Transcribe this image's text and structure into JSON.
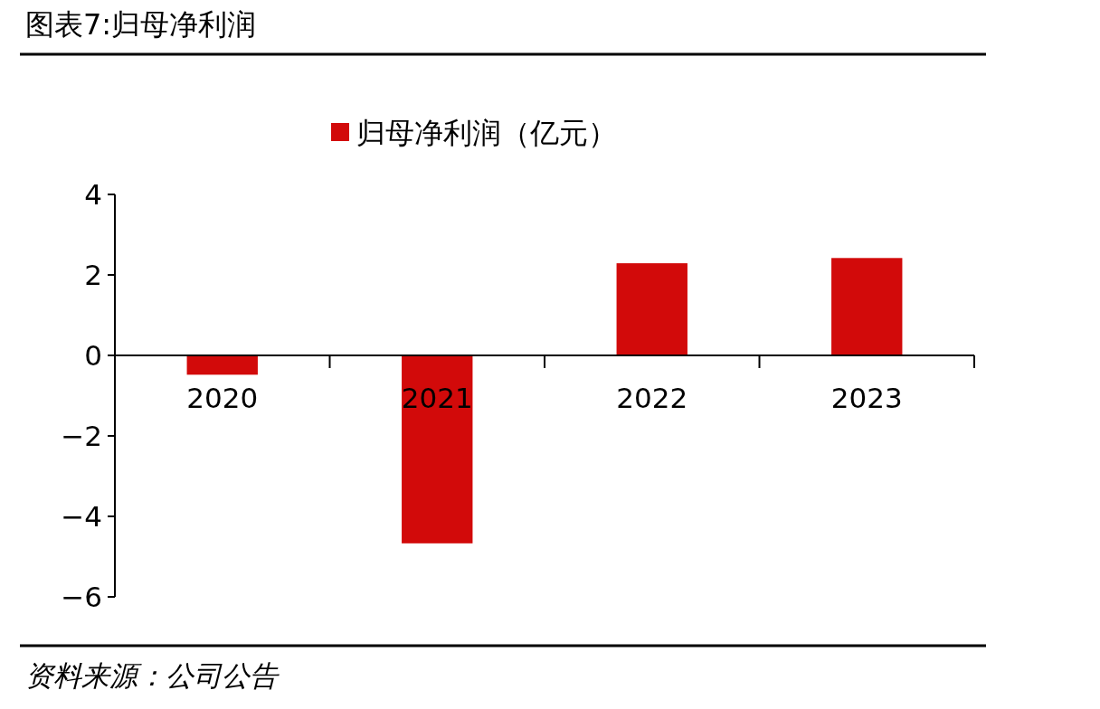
{
  "chart_data": {
    "type": "bar",
    "title": "图表7:归母净利润",
    "categories": [
      "2020",
      "2021",
      "2022",
      "2023"
    ],
    "series": [
      {
        "name": "归母净利润（亿元）",
        "color": "#d20a0a",
        "values": [
          -0.48,
          -4.67,
          2.29,
          2.42
        ]
      }
    ],
    "ylim": [
      -6,
      4
    ],
    "yticks": [
      {
        "value": -6,
        "label": "−6"
      },
      {
        "value": -4,
        "label": "−4"
      },
      {
        "value": -2,
        "label": "−2"
      },
      0,
      2,
      4
    ],
    "legend": "top",
    "grid": false,
    "annotations": [
      "资料来源：公司公告"
    ]
  }
}
